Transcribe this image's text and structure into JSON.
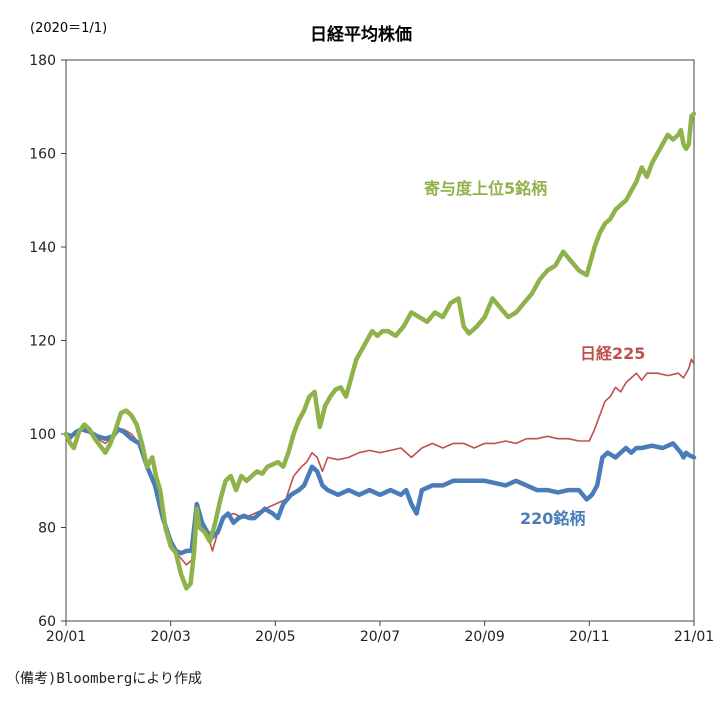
{
  "chart_data": {
    "type": "line",
    "title": "日経平均株価",
    "unit_label": "(2020＝1/1)",
    "ylim": [
      60,
      180
    ],
    "yticks": [
      60,
      80,
      100,
      120,
      140,
      160,
      180
    ],
    "xlim": [
      0,
      12
    ],
    "xtick_labels": [
      "20/01",
      "20/03",
      "20/05",
      "20/07",
      "20/09",
      "20/11",
      "21/01"
    ],
    "xtick_positions": [
      0,
      2,
      4,
      6,
      8,
      10,
      12
    ],
    "grid": false,
    "series": [
      {
        "name": "寄与度上位5銘柄",
        "color": "#8fb24a",
        "points": [
          [
            0,
            100
          ],
          [
            0.08,
            98
          ],
          [
            0.15,
            97
          ],
          [
            0.25,
            100.5
          ],
          [
            0.35,
            102
          ],
          [
            0.45,
            101
          ],
          [
            0.55,
            99
          ],
          [
            0.65,
            97.5
          ],
          [
            0.75,
            96
          ],
          [
            0.85,
            98
          ],
          [
            0.95,
            101
          ],
          [
            1.05,
            104.5
          ],
          [
            1.15,
            105
          ],
          [
            1.25,
            104
          ],
          [
            1.35,
            102
          ],
          [
            1.45,
            98
          ],
          [
            1.55,
            93
          ],
          [
            1.65,
            95
          ],
          [
            1.72,
            91
          ],
          [
            1.8,
            88
          ],
          [
            1.9,
            80
          ],
          [
            2.0,
            76
          ],
          [
            2.1,
            74.5
          ],
          [
            2.2,
            70
          ],
          [
            2.3,
            67
          ],
          [
            2.38,
            68
          ],
          [
            2.45,
            75
          ],
          [
            2.5,
            84
          ],
          [
            2.55,
            80
          ],
          [
            2.65,
            79
          ],
          [
            2.75,
            77
          ],
          [
            2.85,
            81
          ],
          [
            2.95,
            86
          ],
          [
            3.05,
            90
          ],
          [
            3.15,
            91
          ],
          [
            3.25,
            88
          ],
          [
            3.35,
            91
          ],
          [
            3.45,
            90
          ],
          [
            3.55,
            91
          ],
          [
            3.65,
            92
          ],
          [
            3.75,
            91.5
          ],
          [
            3.85,
            93
          ],
          [
            3.95,
            93.5
          ],
          [
            4.05,
            94
          ],
          [
            4.15,
            93
          ],
          [
            4.25,
            96
          ],
          [
            4.35,
            100
          ],
          [
            4.45,
            103
          ],
          [
            4.55,
            105
          ],
          [
            4.65,
            108
          ],
          [
            4.75,
            109
          ],
          [
            4.85,
            101.5
          ],
          [
            4.95,
            106
          ],
          [
            5.05,
            108
          ],
          [
            5.15,
            109.5
          ],
          [
            5.25,
            110
          ],
          [
            5.35,
            108
          ],
          [
            5.45,
            112
          ],
          [
            5.55,
            116
          ],
          [
            5.65,
            118
          ],
          [
            5.75,
            120
          ],
          [
            5.85,
            122
          ],
          [
            5.95,
            121
          ],
          [
            6.05,
            122
          ],
          [
            6.15,
            122
          ],
          [
            6.3,
            121
          ],
          [
            6.45,
            123
          ],
          [
            6.6,
            126
          ],
          [
            6.75,
            125
          ],
          [
            6.9,
            124
          ],
          [
            7.05,
            126
          ],
          [
            7.2,
            125
          ],
          [
            7.35,
            128
          ],
          [
            7.5,
            129
          ],
          [
            7.6,
            123
          ],
          [
            7.7,
            121.5
          ],
          [
            7.85,
            123
          ],
          [
            8.0,
            125
          ],
          [
            8.15,
            129
          ],
          [
            8.3,
            127
          ],
          [
            8.45,
            125
          ],
          [
            8.6,
            126
          ],
          [
            8.75,
            128
          ],
          [
            8.9,
            130
          ],
          [
            9.05,
            133
          ],
          [
            9.2,
            135
          ],
          [
            9.35,
            136
          ],
          [
            9.5,
            139
          ],
          [
            9.65,
            137
          ],
          [
            9.8,
            135
          ],
          [
            9.95,
            134
          ],
          [
            10.1,
            140
          ],
          [
            10.2,
            143
          ],
          [
            10.3,
            145
          ],
          [
            10.4,
            146
          ],
          [
            10.5,
            148
          ],
          [
            10.6,
            149
          ],
          [
            10.7,
            150
          ],
          [
            10.8,
            152
          ],
          [
            10.9,
            154
          ],
          [
            11.0,
            157
          ],
          [
            11.1,
            155
          ],
          [
            11.2,
            158
          ],
          [
            11.3,
            160
          ],
          [
            11.4,
            162
          ],
          [
            11.5,
            164
          ],
          [
            11.6,
            163
          ],
          [
            11.7,
            164
          ],
          [
            11.75,
            165
          ],
          [
            11.8,
            162
          ],
          [
            11.85,
            161
          ],
          [
            11.9,
            162
          ],
          [
            11.95,
            168
          ],
          [
            12.0,
            168.5
          ]
        ]
      },
      {
        "name": "日経225",
        "color": "#c0504d",
        "points": [
          [
            0,
            100
          ],
          [
            0.1,
            99
          ],
          [
            0.2,
            100.5
          ],
          [
            0.3,
            101
          ],
          [
            0.45,
            100.5
          ],
          [
            0.6,
            99
          ],
          [
            0.75,
            98
          ],
          [
            0.9,
            99.5
          ],
          [
            1.0,
            101
          ],
          [
            1.1,
            101
          ],
          [
            1.25,
            100
          ],
          [
            1.4,
            98
          ],
          [
            1.55,
            93
          ],
          [
            1.7,
            90
          ],
          [
            1.85,
            84
          ],
          [
            2.0,
            77
          ],
          [
            2.15,
            74
          ],
          [
            2.3,
            72
          ],
          [
            2.4,
            73
          ],
          [
            2.5,
            82
          ],
          [
            2.6,
            80
          ],
          [
            2.7,
            78.5
          ],
          [
            2.8,
            75
          ],
          [
            2.9,
            79
          ],
          [
            3.0,
            82
          ],
          [
            3.2,
            83
          ],
          [
            3.4,
            82
          ],
          [
            3.6,
            83
          ],
          [
            3.8,
            84
          ],
          [
            4.0,
            85
          ],
          [
            4.2,
            86
          ],
          [
            4.35,
            91
          ],
          [
            4.5,
            93
          ],
          [
            4.6,
            94
          ],
          [
            4.7,
            96
          ],
          [
            4.8,
            95
          ],
          [
            4.9,
            92
          ],
          [
            5.0,
            95
          ],
          [
            5.2,
            94.5
          ],
          [
            5.4,
            95
          ],
          [
            5.6,
            96
          ],
          [
            5.8,
            96.5
          ],
          [
            6.0,
            96
          ],
          [
            6.2,
            96.5
          ],
          [
            6.4,
            97
          ],
          [
            6.6,
            95
          ],
          [
            6.8,
            97
          ],
          [
            7.0,
            98
          ],
          [
            7.2,
            97
          ],
          [
            7.4,
            98
          ],
          [
            7.6,
            98
          ],
          [
            7.8,
            97
          ],
          [
            8.0,
            98
          ],
          [
            8.2,
            98
          ],
          [
            8.4,
            98.5
          ],
          [
            8.6,
            98
          ],
          [
            8.8,
            99
          ],
          [
            9.0,
            99
          ],
          [
            9.2,
            99.5
          ],
          [
            9.4,
            99
          ],
          [
            9.6,
            99
          ],
          [
            9.8,
            98.5
          ],
          [
            10.0,
            98.5
          ],
          [
            10.1,
            101
          ],
          [
            10.2,
            104
          ],
          [
            10.3,
            107
          ],
          [
            10.4,
            108
          ],
          [
            10.5,
            110
          ],
          [
            10.6,
            109
          ],
          [
            10.7,
            111
          ],
          [
            10.8,
            112
          ],
          [
            10.9,
            113
          ],
          [
            11.0,
            111.5
          ],
          [
            11.1,
            113
          ],
          [
            11.3,
            113
          ],
          [
            11.5,
            112.5
          ],
          [
            11.7,
            113
          ],
          [
            11.8,
            112
          ],
          [
            11.9,
            114
          ],
          [
            11.95,
            116
          ],
          [
            12.0,
            115
          ]
        ]
      },
      {
        "name": "220銘柄",
        "color": "#4a7cb9",
        "points": [
          [
            0,
            100
          ],
          [
            0.1,
            99.5
          ],
          [
            0.2,
            100.5
          ],
          [
            0.3,
            101
          ],
          [
            0.45,
            100.5
          ],
          [
            0.6,
            99.5
          ],
          [
            0.75,
            99
          ],
          [
            0.9,
            99.5
          ],
          [
            1.0,
            101
          ],
          [
            1.1,
            100.5
          ],
          [
            1.25,
            99
          ],
          [
            1.4,
            98
          ],
          [
            1.55,
            93
          ],
          [
            1.7,
            89
          ],
          [
            1.85,
            82
          ],
          [
            2.0,
            77
          ],
          [
            2.1,
            75
          ],
          [
            2.2,
            74.5
          ],
          [
            2.3,
            75
          ],
          [
            2.4,
            75
          ],
          [
            2.5,
            85
          ],
          [
            2.6,
            81
          ],
          [
            2.7,
            79
          ],
          [
            2.8,
            78
          ],
          [
            2.9,
            79
          ],
          [
            3.0,
            82
          ],
          [
            3.1,
            83
          ],
          [
            3.2,
            81
          ],
          [
            3.3,
            82
          ],
          [
            3.4,
            82.5
          ],
          [
            3.5,
            82
          ],
          [
            3.6,
            82
          ],
          [
            3.7,
            83
          ],
          [
            3.8,
            84
          ],
          [
            3.95,
            83
          ],
          [
            4.05,
            82
          ],
          [
            4.15,
            85
          ],
          [
            4.3,
            87
          ],
          [
            4.45,
            88
          ],
          [
            4.55,
            89
          ],
          [
            4.7,
            93
          ],
          [
            4.8,
            92
          ],
          [
            4.9,
            89
          ],
          [
            5.0,
            88
          ],
          [
            5.2,
            87
          ],
          [
            5.4,
            88
          ],
          [
            5.6,
            87
          ],
          [
            5.8,
            88
          ],
          [
            6.0,
            87
          ],
          [
            6.2,
            88
          ],
          [
            6.4,
            87
          ],
          [
            6.5,
            88
          ],
          [
            6.6,
            85
          ],
          [
            6.7,
            83
          ],
          [
            6.8,
            88
          ],
          [
            7.0,
            89
          ],
          [
            7.2,
            89
          ],
          [
            7.4,
            90
          ],
          [
            7.6,
            90
          ],
          [
            7.8,
            90
          ],
          [
            8.0,
            90
          ],
          [
            8.2,
            89.5
          ],
          [
            8.4,
            89
          ],
          [
            8.6,
            90
          ],
          [
            8.8,
            89
          ],
          [
            9.0,
            88
          ],
          [
            9.2,
            88
          ],
          [
            9.4,
            87.5
          ],
          [
            9.6,
            88
          ],
          [
            9.8,
            88
          ],
          [
            9.95,
            86
          ],
          [
            10.05,
            87
          ],
          [
            10.15,
            89
          ],
          [
            10.25,
            95
          ],
          [
            10.35,
            96
          ],
          [
            10.5,
            95
          ],
          [
            10.6,
            96
          ],
          [
            10.7,
            97
          ],
          [
            10.8,
            96
          ],
          [
            10.9,
            97
          ],
          [
            11.0,
            97
          ],
          [
            11.2,
            97.5
          ],
          [
            11.4,
            97
          ],
          [
            11.6,
            98
          ],
          [
            11.75,
            96
          ],
          [
            11.8,
            95
          ],
          [
            11.85,
            96
          ],
          [
            11.9,
            95.5
          ],
          [
            12.0,
            95
          ]
        ]
      }
    ],
    "annotations": {
      "top5": "寄与度上位5銘柄",
      "nikkei": "日経225",
      "b220": "220銘柄"
    }
  },
  "footnote": "（備考)Bloombergにより作成"
}
